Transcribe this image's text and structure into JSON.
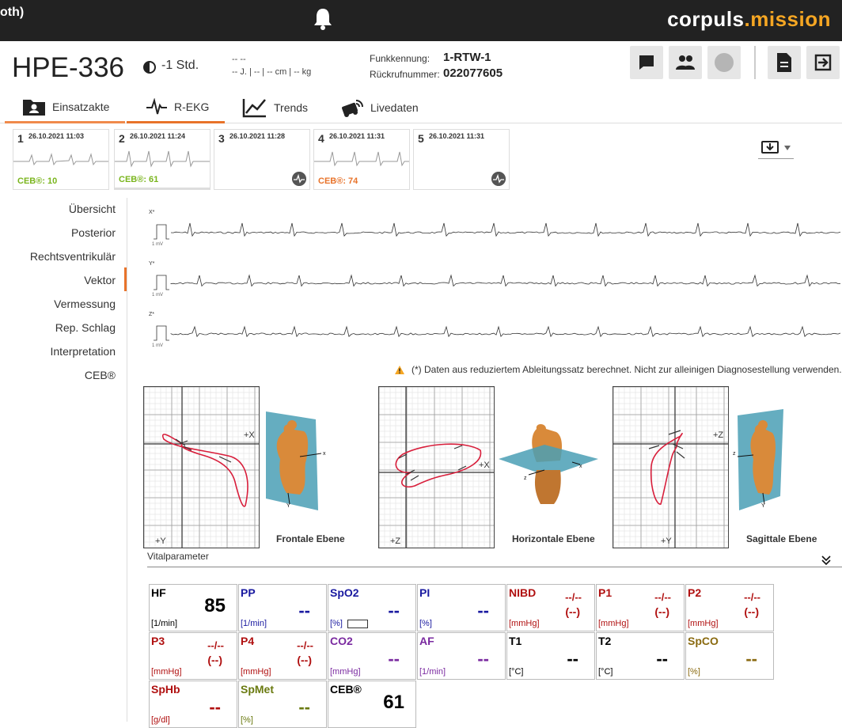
{
  "topbar": {
    "left_text": "oth)",
    "brand_part1": "corpuls",
    "brand_part2": ".mission"
  },
  "header": {
    "patient_id": "HPE-336",
    "time_offset": "-1 Std.",
    "demo_line1": "-- --",
    "demo_line2": "-- J. | -- | -- cm | -- kg",
    "funk_label": "Funkkennung:",
    "funk_value": "1-RTW-1",
    "rueck_label": "Rückrufnummer:",
    "rueck_value": "022077605"
  },
  "tabs": [
    {
      "label": "Einsatzakte"
    },
    {
      "label": "R-EKG"
    },
    {
      "label": "Trends"
    },
    {
      "label": "Livedaten"
    }
  ],
  "recordings": [
    {
      "num": "1",
      "datetime": "26.10.2021 11:03",
      "ceb": "CEB®: 10",
      "ceb_color": "#7ab51d"
    },
    {
      "num": "2",
      "datetime": "26.10.2021 11:24",
      "ceb": "CEB®: 61",
      "ceb_color": "#7ab51d"
    },
    {
      "num": "3",
      "datetime": "26.10.2021 11:28",
      "ceb": "",
      "ceb_color": ""
    },
    {
      "num": "4",
      "datetime": "26.10.2021 11:31",
      "ceb": "CEB®: 74",
      "ceb_color": "#e8732a"
    },
    {
      "num": "5",
      "datetime": "26.10.2021 11:31",
      "ceb": "",
      "ceb_color": ""
    }
  ],
  "sidenav": [
    "Übersicht",
    "Posterior",
    "Rechtsventrikulär",
    "Vektor",
    "Vermessung",
    "Rep. Schlag",
    "Interpretation",
    "CEB®"
  ],
  "traces": {
    "labels": [
      "X*",
      "Y*",
      "Z*"
    ],
    "cal": "1 mV"
  },
  "warning": "(*) Daten aus reduziertem Ableitungssatz berechnet. Nicht zur alleinigen Diagnosestellung verwenden.",
  "planes": [
    {
      "label": "Frontale Ebene",
      "axis_h": "+X",
      "axis_v": "+Y"
    },
    {
      "label": "Horizontale Ebene",
      "axis_h": "+X",
      "axis_v": "+Z"
    },
    {
      "label": "Sagittale Ebene",
      "axis_h": "+Z",
      "axis_v": "+Y"
    }
  ],
  "vitals_title": "Vitalparameter",
  "vitals": [
    {
      "name": "HF",
      "unit": "[1/min]",
      "value": "85",
      "s1": "",
      "s2": "",
      "color": "#000000",
      "vcolor": "#000000"
    },
    {
      "name": "PP",
      "unit": "[1/min]",
      "value": "--",
      "s1": "",
      "s2": "",
      "color": "#1a1aa0",
      "vcolor": "#1a1aa0"
    },
    {
      "name": "SpO2",
      "unit": "[%]",
      "value": "--",
      "s1": "",
      "s2": "",
      "color": "#1a1aa0",
      "vcolor": "#1a1aa0"
    },
    {
      "name": "PI",
      "unit": "[%]",
      "value": "--",
      "s1": "",
      "s2": "",
      "color": "#1a1aa0",
      "vcolor": "#1a1aa0"
    },
    {
      "name": "NIBD",
      "unit": "[mmHg]",
      "value": "",
      "s1": "--/--",
      "s2": "(--)",
      "color": "#b01010",
      "vcolor": "#b01010"
    },
    {
      "name": "P1",
      "unit": "[mmHg]",
      "value": "",
      "s1": "--/--",
      "s2": "(--)",
      "color": "#b01010",
      "vcolor": "#b01010"
    },
    {
      "name": "P2",
      "unit": "[mmHg]",
      "value": "",
      "s1": "--/--",
      "s2": "(--)",
      "color": "#b01010",
      "vcolor": "#b01010"
    },
    {
      "name": "P3",
      "unit": "[mmHg]",
      "value": "",
      "s1": "--/--",
      "s2": "(--)",
      "color": "#b01010",
      "vcolor": "#b01010"
    },
    {
      "name": "P4",
      "unit": "[mmHg]",
      "value": "",
      "s1": "--/--",
      "s2": "(--)",
      "color": "#b01010",
      "vcolor": "#b01010"
    },
    {
      "name": "CO2",
      "unit": "[mmHg]",
      "value": "--",
      "s1": "",
      "s2": "",
      "color": "#7a2aa0",
      "vcolor": "#7a2aa0"
    },
    {
      "name": "AF",
      "unit": "[1/min]",
      "value": "--",
      "s1": "",
      "s2": "",
      "color": "#7a2aa0",
      "vcolor": "#7a2aa0"
    },
    {
      "name": "T1",
      "unit": "[°C]",
      "value": "--",
      "s1": "",
      "s2": "",
      "color": "#000000",
      "vcolor": "#000000"
    },
    {
      "name": "T2",
      "unit": "[°C]",
      "value": "--",
      "s1": "",
      "s2": "",
      "color": "#000000",
      "vcolor": "#000000"
    },
    {
      "name": "SpCO",
      "unit": "[%]",
      "value": "--",
      "s1": "",
      "s2": "",
      "color": "#8a6a10",
      "vcolor": "#8a6a10"
    },
    {
      "name": "SpHb",
      "unit": "[g/dl]",
      "value": "--",
      "s1": "",
      "s2": "",
      "color": "#b01010",
      "vcolor": "#b01010"
    },
    {
      "name": "SpMet",
      "unit": "[%]",
      "value": "--",
      "s1": "",
      "s2": "",
      "color": "#6a7a10",
      "vcolor": "#6a7a10"
    },
    {
      "name": "CEB®",
      "unit": "",
      "value": "61",
      "s1": "",
      "s2": "",
      "color": "#000000",
      "vcolor": "#000000"
    }
  ],
  "colors": {
    "accent": "#e8732a",
    "ceb_green": "#7ab51d",
    "brand_orange": "#f5a623"
  }
}
